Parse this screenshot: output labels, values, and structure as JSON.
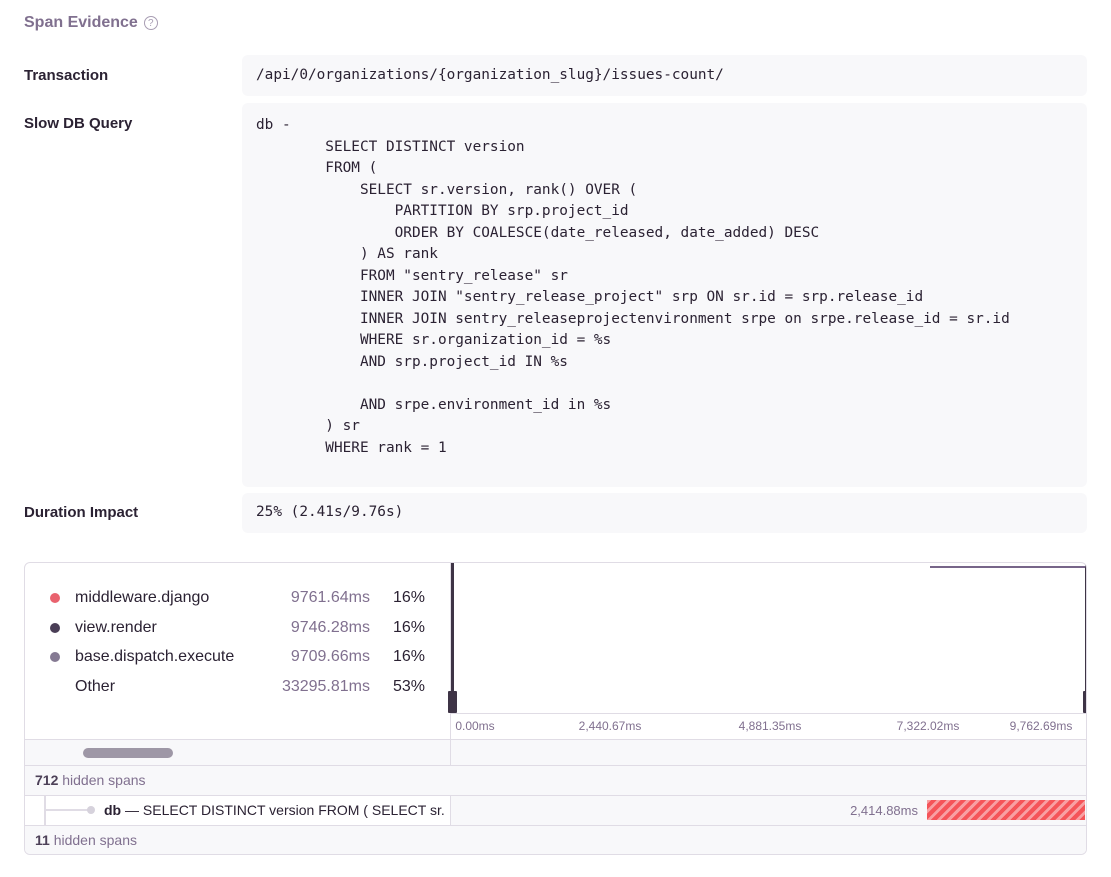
{
  "title": "Span Evidence",
  "help_icon": "?",
  "fields": [
    {
      "label": "Transaction",
      "value": "/api/0/organizations/{organization_slug}/issues-count/"
    },
    {
      "label": "Slow DB Query",
      "value": "db -\n        SELECT DISTINCT version\n        FROM (\n            SELECT sr.version, rank() OVER (\n                PARTITION BY srp.project_id\n                ORDER BY COALESCE(date_released, date_added) DESC\n            ) AS rank\n            FROM \"sentry_release\" sr\n            INNER JOIN \"sentry_release_project\" srp ON sr.id = srp.release_id\n            INNER JOIN sentry_releaseprojectenvironment srpe on srpe.release_id = sr.id\n            WHERE sr.organization_id = %s\n            AND srp.project_id IN %s\n\n            AND srpe.environment_id in %s\n        ) sr\n        WHERE rank = 1\n"
    },
    {
      "label": "Duration Impact",
      "value": "25% (2.41s/9.76s)"
    }
  ],
  "legend": [
    {
      "name": "middleware.django",
      "duration": "9761.64ms",
      "percent": "16%",
      "color": "#e9626e"
    },
    {
      "name": "view.render",
      "duration": "9746.28ms",
      "percent": "16%",
      "color": "#4a3e56"
    },
    {
      "name": "base.dispatch.execute",
      "duration": "9709.66ms",
      "percent": "16%",
      "color": "#857a93"
    },
    {
      "name": "Other",
      "duration": "33295.81ms",
      "percent": "53%",
      "color": ""
    }
  ],
  "axis_ticks": [
    "0.00ms",
    "2,440.67ms",
    "4,881.35ms",
    "7,322.02ms",
    "9,762.69ms"
  ],
  "hidden_top": {
    "count": "712",
    "label": "hidden spans"
  },
  "span": {
    "op": "db",
    "sep": " — ",
    "description": "SELECT DISTINCT version FROM ( SELECT sr.",
    "duration": "2,414.88ms",
    "start_fraction": 0.75,
    "end_fraction": 1.0,
    "bar_color": "#f55459"
  },
  "hidden_bottom": {
    "count": "11",
    "label": "hidden spans"
  }
}
